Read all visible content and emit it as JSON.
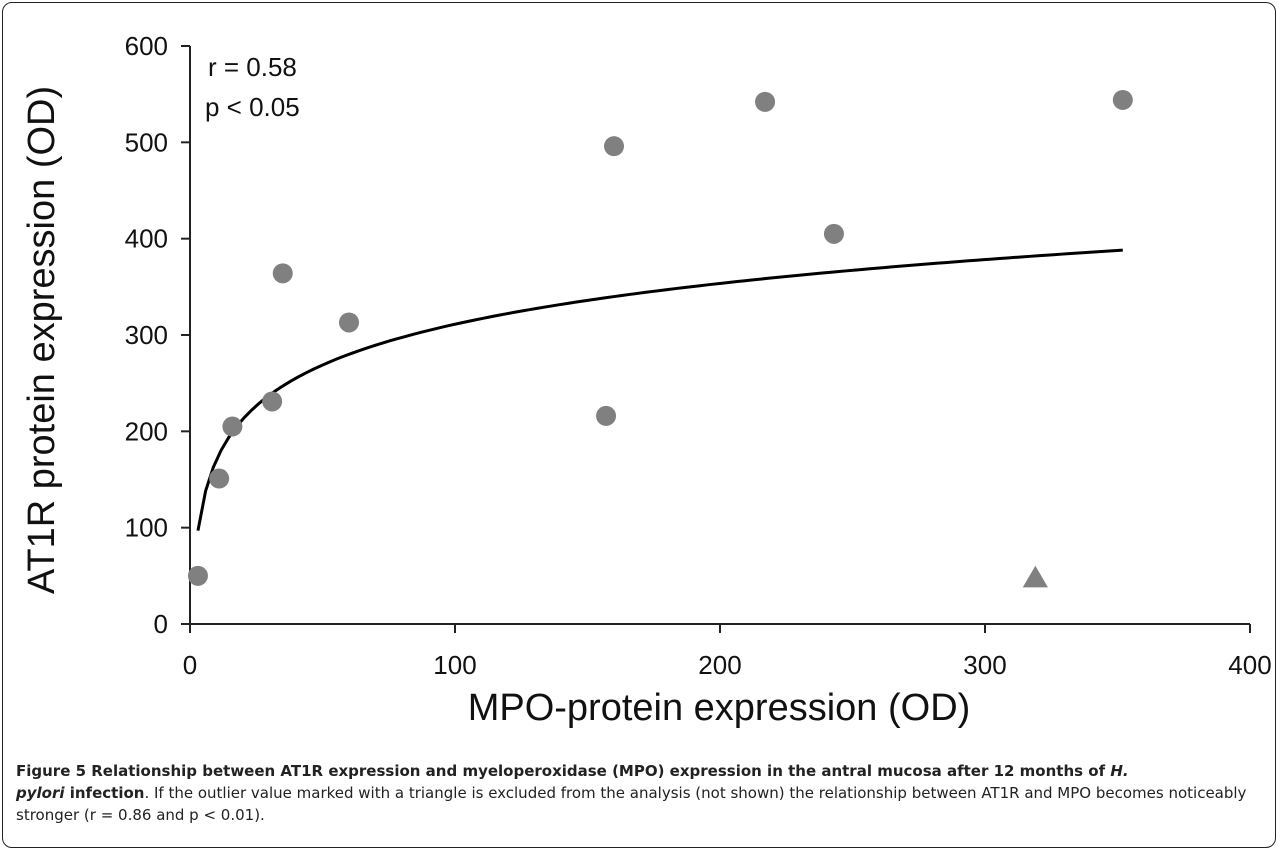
{
  "chart_data": {
    "type": "scatter",
    "xlabel": "MPO-protein expression (OD)",
    "ylabel": "AT1R protein expression (OD)",
    "xlim": [
      0,
      400
    ],
    "ylim": [
      0,
      600
    ],
    "x_ticks": [
      "0",
      "100",
      "200",
      "300",
      "400"
    ],
    "y_ticks": [
      "0",
      "100",
      "200",
      "300",
      "400",
      "500",
      "600"
    ],
    "grid": false,
    "annotations": [
      "r = 0.58",
      "p < 0.05"
    ],
    "series": [
      {
        "marker": "circle",
        "color": "#808080",
        "points": [
          {
            "x": 3,
            "y": 50
          },
          {
            "x": 11,
            "y": 151
          },
          {
            "x": 16,
            "y": 205
          },
          {
            "x": 31,
            "y": 231
          },
          {
            "x": 35,
            "y": 364
          },
          {
            "x": 60,
            "y": 313
          },
          {
            "x": 157,
            "y": 216
          },
          {
            "x": 160,
            "y": 496
          },
          {
            "x": 217,
            "y": 542
          },
          {
            "x": 243,
            "y": 405
          },
          {
            "x": 352,
            "y": 544
          }
        ]
      },
      {
        "marker": "triangle",
        "color": "#808080",
        "points": [
          {
            "x": 319,
            "y": 48
          }
        ]
      }
    ],
    "trendline": {
      "type": "logarithmic",
      "color": "#000000",
      "x_range": [
        3,
        352
      ],
      "a": 61.1,
      "b": 29.8
    }
  },
  "caption": {
    "title_part1": "Figure 5 Relationship between AT1R expression and myeloperoxidase (MPO) expression in the antral mucosa after 12 months of ",
    "title_italic1": "H.",
    "title_italic2": "pylori",
    "title_part2": " infection",
    "body": ". If the outlier value marked with a triangle is excluded from the analysis (not shown) the relationship between AT1R and MPO becomes noticeably stronger (r = 0.86 and p < 0.01)."
  }
}
